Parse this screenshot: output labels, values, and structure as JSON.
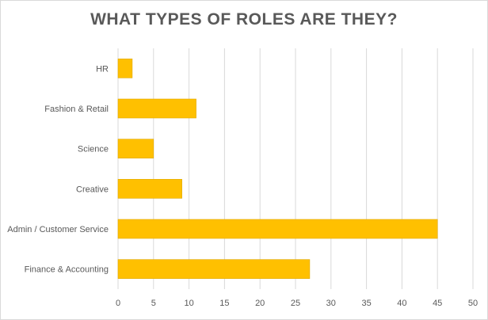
{
  "chart_data": {
    "type": "bar",
    "orientation": "horizontal",
    "title": "WHAT TYPES OF ROLES ARE THEY?",
    "categories": [
      "HR",
      "Fashion & Retail",
      "Science",
      "Creative",
      "Admin / Customer Service",
      "Finance & Accounting"
    ],
    "values": [
      2,
      11,
      5,
      9,
      45,
      27
    ],
    "xlim": [
      0,
      50
    ],
    "xticks": [
      0,
      5,
      10,
      15,
      20,
      25,
      30,
      35,
      40,
      45,
      50
    ],
    "grid": true,
    "bar_color": "#FFC000",
    "bar_edge_color": "#E0A800",
    "gridline_color": "#D9D9D9",
    "text_color": "#595959"
  }
}
